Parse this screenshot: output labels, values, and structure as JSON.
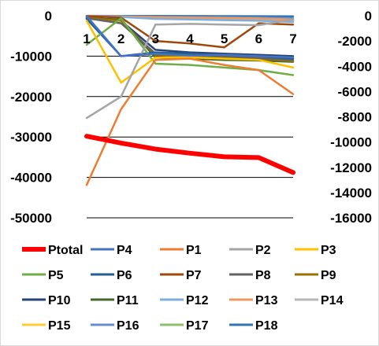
{
  "chart_data": {
    "type": "line",
    "categories": [
      "1",
      "2",
      "3",
      "4",
      "5",
      "6",
      "7"
    ],
    "axes": {
      "left": {
        "ylim": [
          -50000,
          0
        ],
        "ticks": [
          0,
          -10000,
          -20000,
          -30000,
          -40000,
          -50000
        ],
        "tick_labels": [
          "0",
          "-10000",
          "-20000",
          "-30000",
          "-40000",
          "-50000"
        ]
      },
      "right": {
        "ylim": [
          -16000,
          0
        ],
        "ticks": [
          0,
          -2000,
          -4000,
          -6000,
          -8000,
          -10000,
          -12000,
          -14000,
          -16000
        ],
        "tick_labels": [
          "0",
          "-2000",
          "-4000",
          "-6000",
          "-8000",
          "-10000",
          "-12000",
          "-14000",
          "-16000"
        ]
      }
    },
    "grid": true,
    "legend_position": "bottom",
    "series": [
      {
        "name": "Ptotal",
        "axis": "left",
        "color": "#ff0000",
        "width": 6,
        "values": [
          -29800,
          -31500,
          -33000,
          -34000,
          -34900,
          -35100,
          -38800
        ]
      },
      {
        "name": "P4",
        "axis": "right",
        "color": "#4472c4",
        "width": 2.5,
        "values": [
          -30,
          -3200,
          -3000,
          -3150,
          -3100,
          -3200,
          -3300
        ]
      },
      {
        "name": "P1",
        "axis": "right",
        "color": "#ed7d31",
        "width": 2.5,
        "values": [
          -13400,
          -7400,
          -3500,
          -3400,
          -3900,
          -4300,
          -6200
        ]
      },
      {
        "name": "P2",
        "axis": "right",
        "color": "#a5a5a5",
        "width": 2.5,
        "values": [
          -8100,
          -6400,
          -700,
          -650,
          -700,
          -750,
          -300
        ]
      },
      {
        "name": "P3",
        "axis": "right",
        "color": "#ffc000",
        "width": 2.5,
        "values": [
          -400,
          -5300,
          -3300,
          -3300,
          -3400,
          -3500,
          -4100
        ]
      },
      {
        "name": "P5",
        "axis": "right",
        "color": "#70ad47",
        "width": 2.5,
        "values": [
          -2300,
          -200,
          -3800,
          -3900,
          -4100,
          -4300,
          -4700
        ]
      },
      {
        "name": "P6",
        "axis": "right",
        "color": "#255e91",
        "width": 2.5,
        "values": [
          -250,
          -3200,
          -2900,
          -3000,
          -3100,
          -3200,
          -3400
        ]
      },
      {
        "name": "P7",
        "axis": "right",
        "color": "#9e480e",
        "width": 2.5,
        "values": [
          -30,
          -150,
          -2000,
          -2200,
          -2500,
          -600,
          -700
        ]
      },
      {
        "name": "P8",
        "axis": "right",
        "color": "#636363",
        "width": 2.5,
        "values": [
          -200,
          -600,
          -3000,
          -3100,
          -3200,
          -3350,
          -3500
        ]
      },
      {
        "name": "P9",
        "axis": "right",
        "color": "#997300",
        "width": 2.5,
        "values": [
          -150,
          -400,
          -3100,
          -3200,
          -3300,
          -3400,
          -3600
        ]
      },
      {
        "name": "P10",
        "axis": "right",
        "color": "#264478",
        "width": 2.5,
        "values": [
          -100,
          -400,
          -2700,
          -2900,
          -3000,
          -3100,
          -3200
        ]
      },
      {
        "name": "P11",
        "axis": "right",
        "color": "#43682b",
        "width": 2.5,
        "values": [
          -200,
          -300,
          -3300,
          -3400,
          -3500,
          -3550,
          -3650
        ]
      },
      {
        "name": "P12",
        "axis": "right",
        "color": "#7cafdd",
        "width": 2.5,
        "values": [
          -50,
          -100,
          -250,
          -300,
          -350,
          -400,
          -500
        ]
      },
      {
        "name": "P13",
        "axis": "right",
        "color": "#f1975a",
        "width": 2.5,
        "values": [
          -20,
          -60,
          -120,
          -150,
          -180,
          -220,
          -300
        ]
      },
      {
        "name": "P14",
        "axis": "right",
        "color": "#b7b7b7",
        "width": 2.5,
        "values": [
          -30,
          -80,
          -180,
          -220,
          -260,
          -300,
          -400
        ]
      },
      {
        "name": "P15",
        "axis": "right",
        "color": "#ffcd33",
        "width": 2.5,
        "values": [
          -40,
          -90,
          -200,
          -240,
          -280,
          -320,
          -420
        ]
      },
      {
        "name": "P16",
        "axis": "right",
        "color": "#698ed0",
        "width": 2.5,
        "values": [
          -10,
          -40,
          -80,
          -100,
          -120,
          -150,
          -200
        ]
      },
      {
        "name": "P17",
        "axis": "right",
        "color": "#8cc168",
        "width": 2.5,
        "values": [
          -30,
          -70,
          -140,
          -180,
          -210,
          -250,
          -330
        ]
      },
      {
        "name": "P18",
        "axis": "right",
        "color": "#2e75b6",
        "width": 2.5,
        "values": [
          -5,
          -10,
          -20,
          -25,
          -30,
          -35,
          -50
        ]
      }
    ]
  }
}
